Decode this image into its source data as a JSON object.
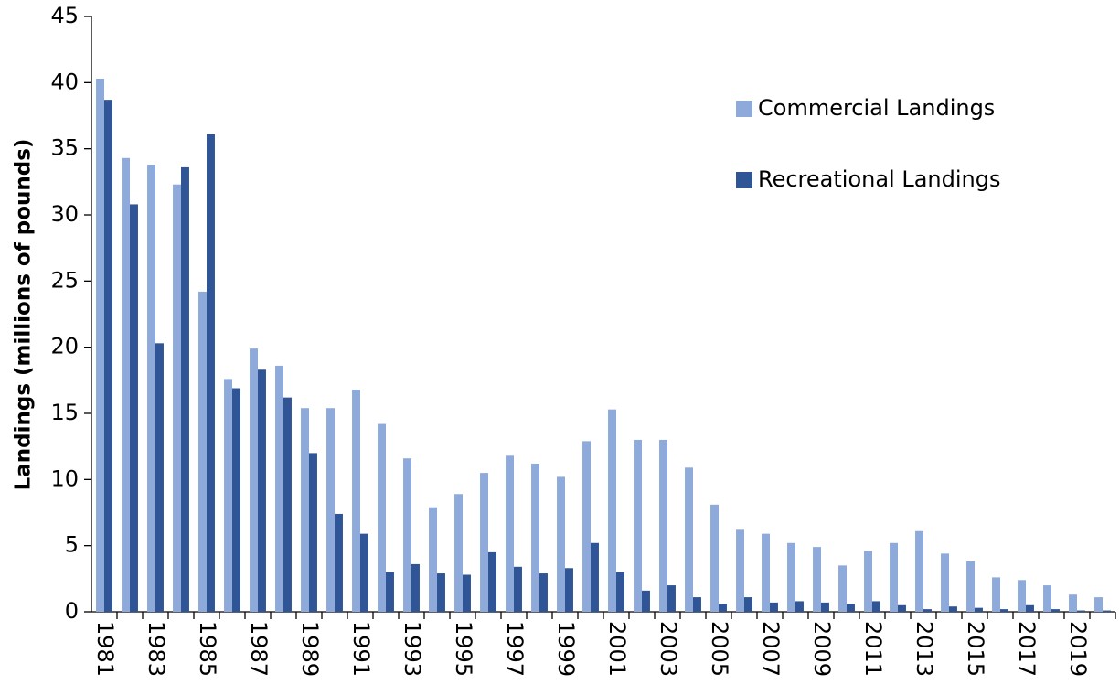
{
  "chart_data": {
    "type": "bar",
    "y_label": "Landings (millions of pounds)",
    "categories": [
      "1981",
      null,
      "1983",
      null,
      "1985",
      null,
      "1987",
      null,
      "1989",
      null,
      "1991",
      null,
      "1993",
      null,
      "1995",
      null,
      "1997",
      null,
      "1999",
      null,
      "2001",
      null,
      "2003",
      null,
      "2005",
      null,
      "2007",
      null,
      "2009",
      null,
      "2011",
      null,
      "2013",
      null,
      "2015",
      null,
      "2017",
      null,
      "2019",
      null
    ],
    "series": [
      {
        "name": "Commercial Landings",
        "color": "#8eaadb",
        "values": [
          40.3,
          34.3,
          33.8,
          32.3,
          24.2,
          17.6,
          19.9,
          18.6,
          15.4,
          15.4,
          16.8,
          14.2,
          11.6,
          7.9,
          8.9,
          10.5,
          11.8,
          11.2,
          10.2,
          12.9,
          15.3,
          13.0,
          13.0,
          10.9,
          8.1,
          6.2,
          5.9,
          5.2,
          4.9,
          3.5,
          4.6,
          5.2,
          6.1,
          4.4,
          3.8,
          2.6,
          2.4,
          2.0,
          1.3,
          1.1
        ]
      },
      {
        "name": "Recreational Landings",
        "color": "#2f5597",
        "values": [
          38.7,
          30.8,
          20.3,
          33.6,
          36.1,
          16.9,
          18.3,
          16.2,
          12.0,
          7.4,
          5.9,
          3.0,
          3.6,
          2.9,
          2.8,
          4.5,
          3.4,
          2.9,
          3.3,
          5.2,
          3.0,
          1.6,
          2.0,
          1.1,
          0.6,
          1.1,
          0.7,
          0.8,
          0.7,
          0.6,
          0.8,
          0.5,
          0.2,
          0.4,
          0.3,
          0.2,
          0.5,
          0.2,
          0.1,
          0.1
        ]
      }
    ],
    "ylim": [
      0,
      45
    ],
    "yticks": [
      0,
      5,
      10,
      15,
      20,
      25,
      30,
      35,
      40,
      45
    ],
    "grid": false,
    "legend": "upper right"
  }
}
